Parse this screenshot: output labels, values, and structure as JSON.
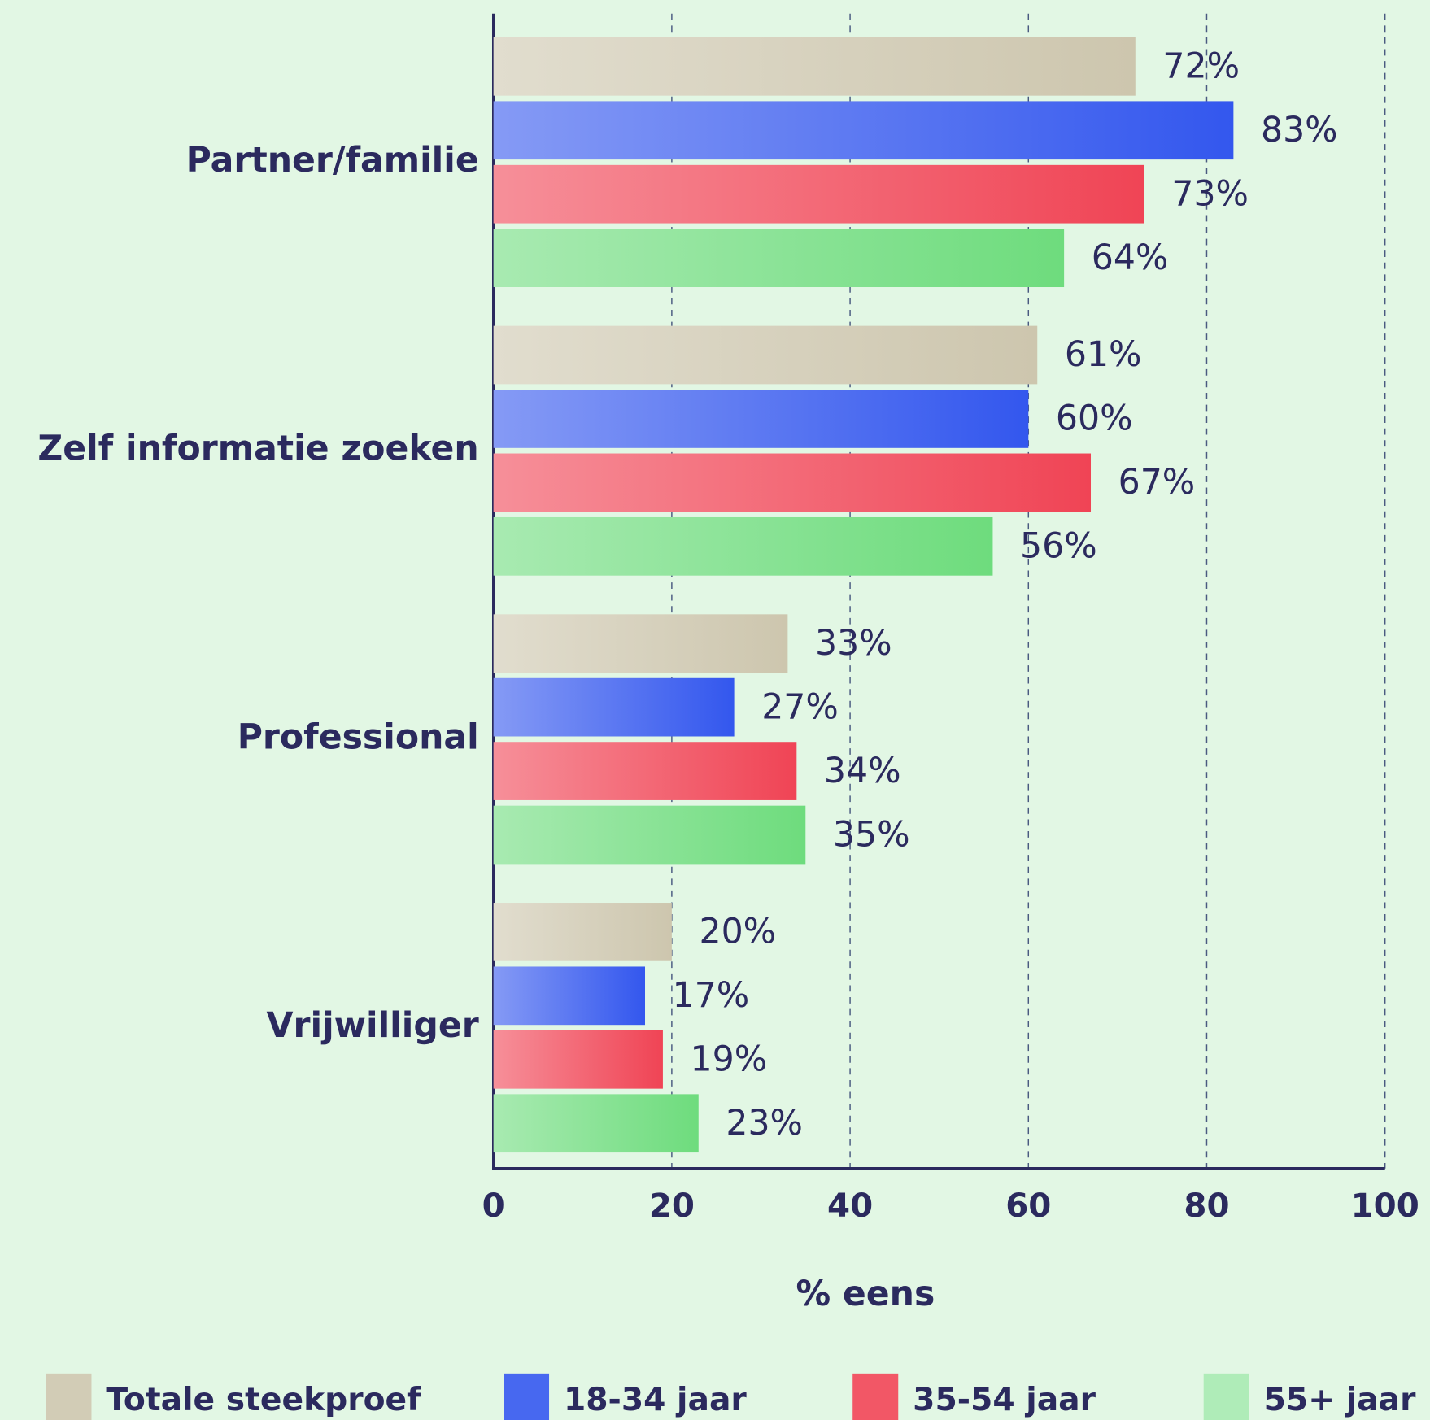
{
  "chart_data": {
    "type": "bar",
    "orientation": "horizontal",
    "categories": [
      "Partner/familie",
      "Zelf informatie zoeken",
      "Professional",
      "Vrijwilliger"
    ],
    "series": [
      {
        "name": "Totale steekproef",
        "color": "#cdc6ae",
        "values": [
          72,
          61,
          33,
          20
        ],
        "value_labels": [
          "72%",
          "61%",
          "33%",
          "20%"
        ]
      },
      {
        "name": "18-34 jaar",
        "color": "#3357ee",
        "values": [
          83,
          60,
          27,
          17
        ],
        "value_labels": [
          "83%",
          "60%",
          "27%",
          "17%"
        ]
      },
      {
        "name": "35-54 jaar",
        "color": "#f04455",
        "values": [
          73,
          67,
          34,
          19
        ],
        "value_labels": [
          "73%",
          "67%",
          "34%",
          "19%"
        ]
      },
      {
        "name": "55+ jaar",
        "color": "#6edc7d",
        "values": [
          64,
          56,
          35,
          23
        ],
        "value_labels": [
          "64%",
          "56%",
          "35%",
          "23%"
        ]
      }
    ],
    "xlabel": "% eens",
    "xlim": [
      0,
      100
    ],
    "xticks": [
      0,
      20,
      40,
      60,
      80,
      100
    ],
    "grid": true,
    "legend": "bottom"
  }
}
